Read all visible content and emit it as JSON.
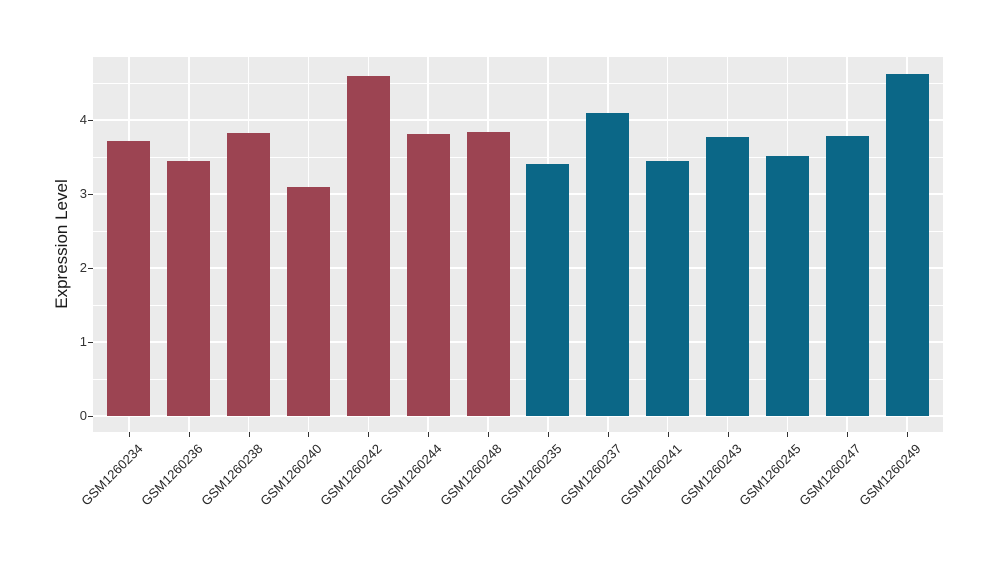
{
  "chart_data": {
    "type": "bar",
    "title": "",
    "xlabel": "",
    "ylabel": "Expression Level",
    "categories": [
      "GSM1260234",
      "GSM1260236",
      "GSM1260238",
      "GSM1260240",
      "GSM1260242",
      "GSM1260244",
      "GSM1260248",
      "GSM1260235",
      "GSM1260237",
      "GSM1260241",
      "GSM1260243",
      "GSM1260245",
      "GSM1260247",
      "GSM1260249"
    ],
    "values": [
      3.71,
      3.45,
      3.82,
      3.1,
      4.59,
      3.81,
      3.84,
      3.4,
      4.1,
      3.45,
      3.77,
      3.52,
      3.79,
      4.62
    ],
    "bar_colors": [
      "#9C4452",
      "#9C4452",
      "#9C4452",
      "#9C4452",
      "#9C4452",
      "#9C4452",
      "#9C4452",
      "#0B6787",
      "#0B6787",
      "#0B6787",
      "#0B6787",
      "#0B6787",
      "#0B6787",
      "#0B6787"
    ],
    "color_groups": [
      {
        "color": "#9C4452",
        "first_category": "GSM1260234",
        "last_category": "GSM1260248",
        "count": 7
      },
      {
        "color": "#0B6787",
        "first_category": "GSM1260235",
        "last_category": "GSM1260249",
        "count": 7
      }
    ],
    "yticks": [
      0,
      1,
      2,
      3,
      4
    ],
    "ylim": [
      -0.23,
      4.85
    ],
    "grid": {
      "major_step": 1,
      "minor_step": 0.5,
      "on": true,
      "vertical_major_at_categories": true
    },
    "legend": null
  },
  "style": {
    "panel_bg": "#EBEBEB",
    "grid_color": "#FFFFFF",
    "figure_bg": "#FFFFFF",
    "axis_title_color": "#1A1A1A",
    "tick_label_color": "#333333",
    "tick_mark_color": "#333333"
  }
}
